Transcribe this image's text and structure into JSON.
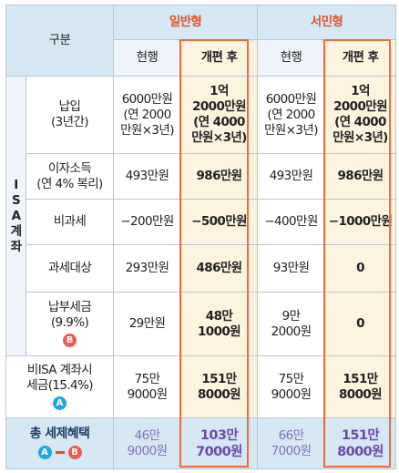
{
  "header": {
    "category_label": "구분",
    "groups": [
      {
        "name": "일반형",
        "sub": [
          "현행",
          "개편 후"
        ]
      },
      {
        "name": "서민형",
        "sub": [
          "현행",
          "개편 후"
        ]
      }
    ],
    "isa_label": [
      "I",
      "S",
      "A",
      "계",
      "좌"
    ]
  },
  "rows": [
    {
      "label": [
        "납입",
        "(3년간)"
      ],
      "cells": [
        [
          "6000만원",
          "(연 2000",
          "만원×3년)"
        ],
        [
          "1억",
          "2000만원",
          "(연 4000",
          "만원×3년)"
        ],
        [
          "6000만원",
          "(연 2000",
          "만원×3년)"
        ],
        [
          "1억",
          "2000만원",
          "(연 4000",
          "만원×3년)"
        ]
      ]
    },
    {
      "label": [
        "이자소득",
        "(연 4% 복리)"
      ],
      "cells": [
        [
          "493만원"
        ],
        [
          "986만원"
        ],
        [
          "493만원"
        ],
        [
          "986만원"
        ]
      ]
    },
    {
      "label": [
        "비과세"
      ],
      "cells": [
        [
          "−200만원"
        ],
        [
          "−500만원"
        ],
        [
          "−400만원"
        ],
        [
          "−1000만원"
        ]
      ]
    },
    {
      "label": [
        "과세대상"
      ],
      "cells": [
        [
          "293만원"
        ],
        [
          "486만원"
        ],
        [
          "93만원"
        ],
        [
          "0"
        ]
      ]
    },
    {
      "label": [
        "납부세금",
        "(9.9%)"
      ],
      "badge": "B",
      "cells": [
        [
          "29만원"
        ],
        [
          "48만",
          "1000원"
        ],
        [
          "9만",
          "2000원"
        ],
        [
          "0"
        ]
      ]
    },
    {
      "label": [
        "비ISA 계좌시",
        "세금(15.4%)"
      ],
      "badge": "A",
      "cells": [
        [
          "75만",
          "9000원"
        ],
        [
          "151만",
          "8000원"
        ],
        [
          "75만",
          "9000원"
        ],
        [
          "151만",
          "8000원"
        ]
      ]
    }
  ],
  "total": {
    "label": "총 세제혜택",
    "formula": [
      "A",
      "B"
    ],
    "cells": [
      [
        "46만",
        "9000원"
      ],
      [
        "103만",
        "7000원"
      ],
      [
        "66만",
        "7000원"
      ],
      [
        "151만",
        "8000원"
      ]
    ]
  },
  "colors": {
    "accent": "#ef6a3c",
    "header_bg": "#d6e8f4",
    "highlight_bg": "#fdf4e0",
    "badge_a": "#22a7e0",
    "badge_b": "#ee5a52"
  }
}
